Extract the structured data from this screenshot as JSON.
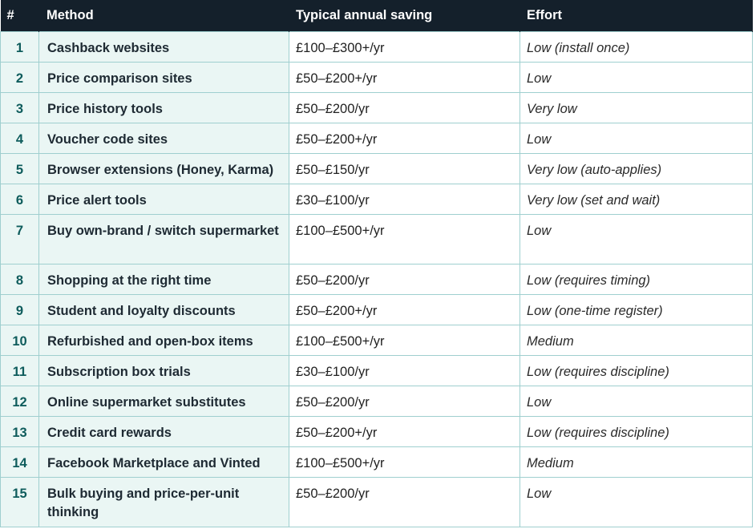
{
  "table": {
    "headers": {
      "num": "#",
      "method": "Method",
      "saving": "Typical annual saving",
      "effort": "Effort"
    },
    "rows": [
      {
        "num": "1",
        "method": "Cashback websites",
        "saving": "£100–£300+/yr",
        "effort": "Low (install once)"
      },
      {
        "num": "2",
        "method": "Price comparison sites",
        "saving": "£50–£200+/yr",
        "effort": "Low"
      },
      {
        "num": "3",
        "method": "Price history tools",
        "saving": "£50–£200/yr",
        "effort": "Very low"
      },
      {
        "num": "4",
        "method": "Voucher code sites",
        "saving": "£50–£200+/yr",
        "effort": "Low"
      },
      {
        "num": "5",
        "method": "Browser extensions (Honey, Karma)",
        "saving": "£50–£150/yr",
        "effort": "Very low (auto-applies)"
      },
      {
        "num": "6",
        "method": "Price alert tools",
        "saving": "£30–£100/yr",
        "effort": "Very low (set and wait)"
      },
      {
        "num": "7",
        "method": "Buy own-brand / switch supermarket",
        "saving": "£100–£500+/yr",
        "effort": "Low"
      },
      {
        "num": "8",
        "method": "Shopping at the right time",
        "saving": "£50–£200/yr",
        "effort": "Low (requires timing)"
      },
      {
        "num": "9",
        "method": "Student and loyalty discounts",
        "saving": "£50–£200+/yr",
        "effort": "Low (one-time register)"
      },
      {
        "num": "10",
        "method": "Refurbished and open-box items",
        "saving": "£100–£500+/yr",
        "effort": "Medium"
      },
      {
        "num": "11",
        "method": "Subscription box trials",
        "saving": "£30–£100/yr",
        "effort": "Low (requires discipline)"
      },
      {
        "num": "12",
        "method": "Online supermarket substitutes",
        "saving": "£50–£200/yr",
        "effort": "Low"
      },
      {
        "num": "13",
        "method": "Credit card rewards",
        "saving": "£50–£200+/yr",
        "effort": "Low (requires discipline)"
      },
      {
        "num": "14",
        "method": "Facebook Marketplace and Vinted",
        "saving": "£100–£500+/yr",
        "effort": "Medium"
      },
      {
        "num": "15",
        "method": "Bulk buying and price-per-unit thinking",
        "saving": "£50–£200/yr",
        "effort": "Low"
      }
    ]
  }
}
